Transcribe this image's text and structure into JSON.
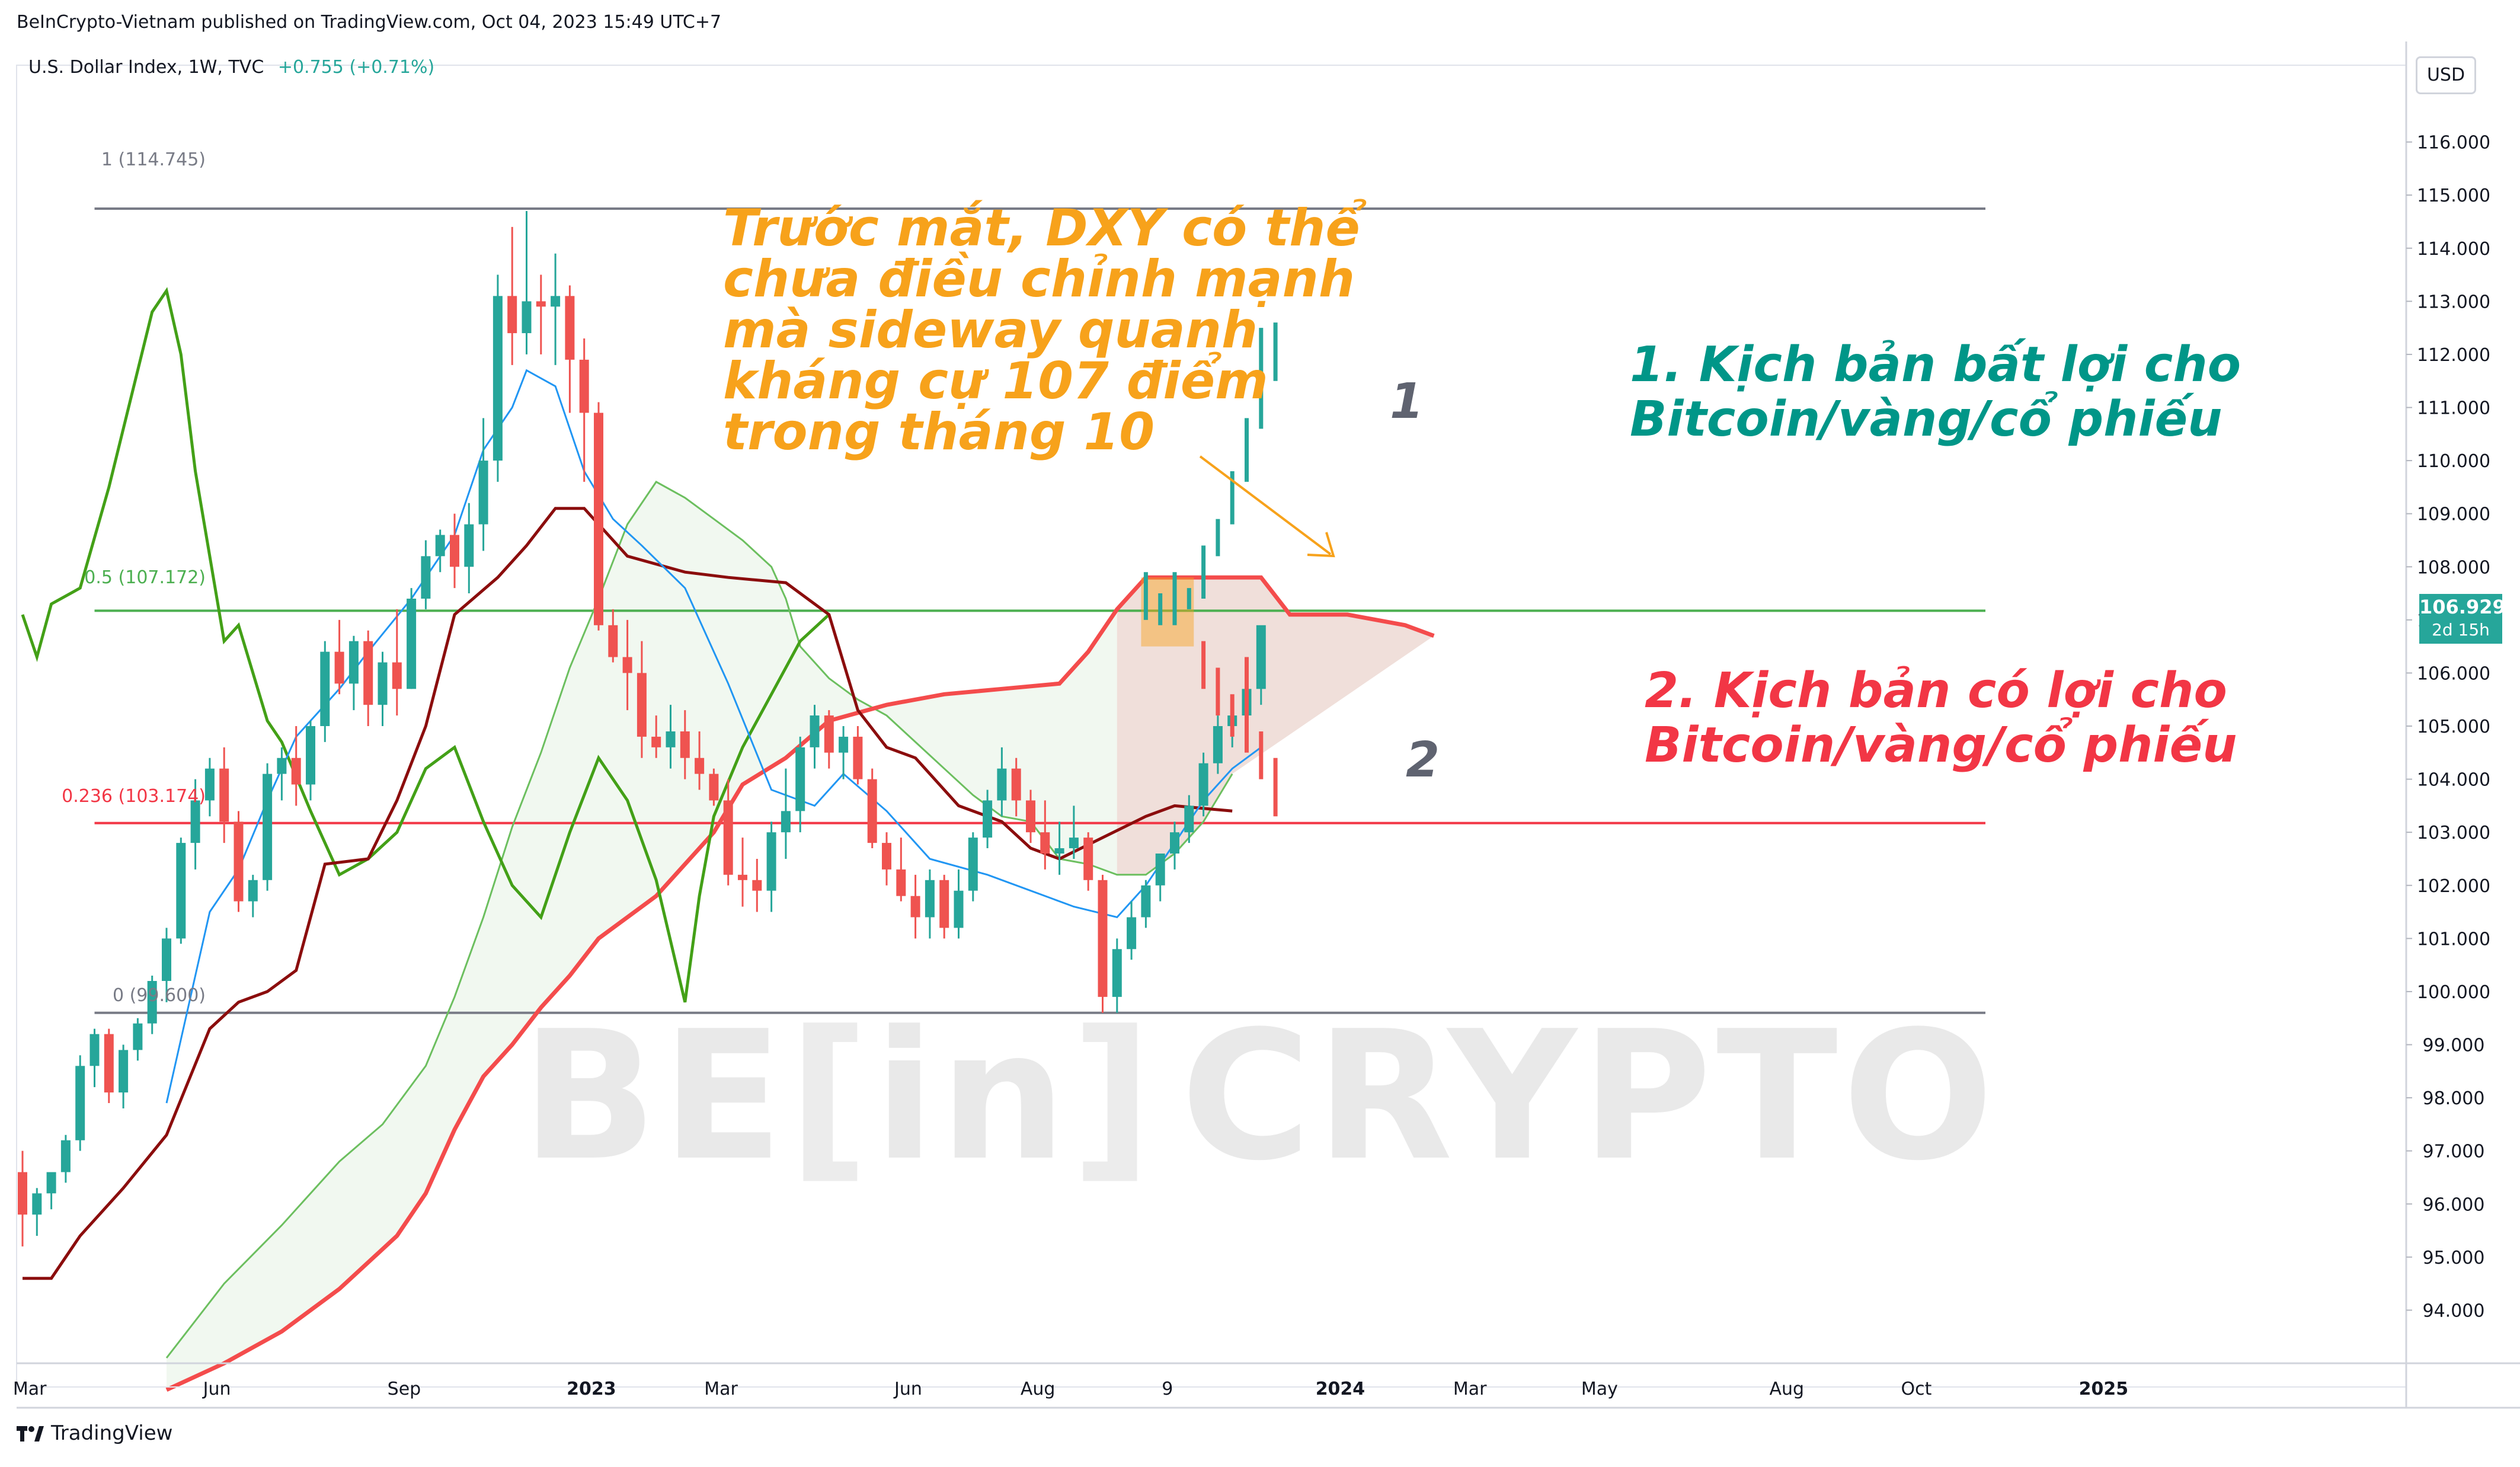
{
  "header": {
    "published": "BeInCrypto-Vietnam published on TradingView.com, Oct 04, 2023 15:49 UTC+7",
    "symbol": "U.S. Dollar Index, 1W, TVC",
    "change": "+0.755 (+0.71%)"
  },
  "currency": "USD",
  "last_price": {
    "value": "106.929",
    "countdown": "2d 15h"
  },
  "fib": {
    "level_1": "1 (114.745)",
    "level_05": "0.5 (107.172)",
    "level_0236": "0.236 (103.174)",
    "level_0": "0 (99.600)"
  },
  "annotations": {
    "orange": [
      "Trước mắt, DXY có thể",
      "chưa điều chỉnh mạnh",
      "mà sideway quanh",
      "kháng cự 107 điểm",
      "trong tháng 10"
    ],
    "teal": [
      "1. Kịch bản bất lợi cho",
      "Bitcoin/vàng/cổ phiếu"
    ],
    "red": [
      "2. Kịch bản có lợi cho",
      "Bitcoin/vàng/cổ phiếu"
    ],
    "marker_1": "1",
    "marker_2": "2"
  },
  "watermark": {
    "left": "BE",
    "mid": "in",
    "right": "CRYPTO"
  },
  "footer": {
    "brand": "TradingView"
  },
  "colors": {
    "up": "#26a69a",
    "down": "#ef5350",
    "tenkan": "#2196f3",
    "kijun": "#8b0d0d",
    "chikou": "#43a017",
    "span_a": "#f44c4c",
    "span_b": "#6cbf5f",
    "fib_top": "#787b86",
    "fib_mid": "#4caf50",
    "fib_red": "#f23645",
    "orange_text": "#f7a21b",
    "teal_text": "#009688",
    "red_text": "#f23645"
  },
  "chart_data": {
    "type": "candlestick",
    "title": "U.S. Dollar Index, 1W, TVC",
    "ylim": [
      93.0,
      117.0
    ],
    "y_ticks": [
      "116.000",
      "115.000",
      "114.000",
      "113.000",
      "112.000",
      "111.000",
      "110.000",
      "109.000",
      "108.000",
      "107.000",
      "106.000",
      "105.000",
      "104.000",
      "103.000",
      "102.000",
      "101.000",
      "100.000",
      "99.000",
      "98.000",
      "97.000",
      "96.000",
      "95.000",
      "94.000"
    ],
    "x_ticks": [
      {
        "label": "Mar",
        "x": 0.5
      },
      {
        "label": "Jun",
        "x": 13.5
      },
      {
        "label": "Sep",
        "x": 26.5
      },
      {
        "label": "2023",
        "x": 39.5
      },
      {
        "label": "Mar",
        "x": 48.5
      },
      {
        "label": "Jun",
        "x": 61.5
      },
      {
        "label": "Aug",
        "x": 70.5
      },
      {
        "label": "9",
        "x": 79.5
      },
      {
        "label": "2024",
        "x": 91.5
      },
      {
        "label": "Mar",
        "x": 100.5
      },
      {
        "label": "May",
        "x": 109.5
      },
      {
        "label": "Aug",
        "x": 122.5
      },
      {
        "label": "Oct",
        "x": 131.5
      },
      {
        "label": "2025",
        "x": 144.5
      }
    ],
    "fib_levels": [
      {
        "label": "1",
        "value": 114.745
      },
      {
        "label": "0.5",
        "value": 107.172
      },
      {
        "label": "0.236",
        "value": 103.174
      },
      {
        "label": "0",
        "value": 99.6
      }
    ],
    "candles": [
      [
        96.6,
        97.0,
        95.2,
        95.8
      ],
      [
        95.8,
        96.3,
        95.4,
        96.2
      ],
      [
        96.2,
        96.6,
        95.9,
        96.6
      ],
      [
        96.6,
        97.3,
        96.4,
        97.2
      ],
      [
        97.2,
        98.8,
        97.0,
        98.6
      ],
      [
        98.6,
        99.3,
        98.2,
        99.2
      ],
      [
        99.2,
        99.3,
        97.9,
        98.1
      ],
      [
        98.1,
        99.0,
        97.8,
        98.9
      ],
      [
        98.9,
        99.5,
        98.7,
        99.4
      ],
      [
        99.4,
        100.3,
        99.2,
        100.2
      ],
      [
        100.2,
        101.2,
        99.8,
        101.0
      ],
      [
        101.0,
        102.9,
        100.9,
        102.8
      ],
      [
        102.8,
        104.0,
        102.3,
        103.6
      ],
      [
        103.6,
        104.4,
        103.3,
        104.2
      ],
      [
        104.2,
        104.6,
        102.8,
        103.2
      ],
      [
        103.2,
        103.4,
        101.5,
        101.7
      ],
      [
        101.7,
        102.2,
        101.4,
        102.1
      ],
      [
        102.1,
        104.3,
        101.9,
        104.1
      ],
      [
        104.1,
        104.6,
        103.6,
        104.4
      ],
      [
        104.4,
        105.0,
        103.5,
        103.9
      ],
      [
        103.9,
        105.1,
        103.6,
        105.0
      ],
      [
        105.0,
        106.6,
        104.7,
        106.4
      ],
      [
        106.4,
        107.0,
        105.6,
        105.8
      ],
      [
        105.8,
        106.7,
        105.3,
        106.6
      ],
      [
        106.6,
        106.8,
        105.0,
        105.4
      ],
      [
        105.4,
        106.4,
        105.0,
        106.2
      ],
      [
        106.2,
        107.2,
        105.2,
        105.7
      ],
      [
        105.7,
        107.6,
        105.7,
        107.4
      ],
      [
        107.4,
        108.5,
        107.2,
        108.2
      ],
      [
        108.2,
        108.7,
        107.9,
        108.6
      ],
      [
        108.6,
        109.0,
        107.6,
        108.0
      ],
      [
        108.0,
        109.2,
        107.5,
        108.8
      ],
      [
        108.8,
        110.8,
        108.3,
        110.0
      ],
      [
        110.0,
        113.5,
        109.6,
        113.1
      ],
      [
        113.1,
        114.4,
        111.8,
        112.4
      ],
      [
        112.4,
        114.7,
        112.0,
        113.0
      ],
      [
        113.0,
        113.5,
        112.0,
        112.9
      ],
      [
        112.9,
        113.9,
        111.8,
        113.1
      ],
      [
        113.1,
        113.3,
        110.9,
        111.9
      ],
      [
        111.9,
        112.3,
        109.6,
        110.9
      ],
      [
        110.9,
        111.1,
        106.8,
        106.9
      ],
      [
        106.9,
        107.2,
        106.2,
        106.3
      ],
      [
        106.3,
        107.0,
        105.3,
        106.0
      ],
      [
        106.0,
        106.6,
        104.4,
        104.8
      ],
      [
        104.8,
        105.2,
        104.4,
        104.6
      ],
      [
        104.6,
        105.4,
        104.2,
        104.9
      ],
      [
        104.9,
        105.3,
        104.0,
        104.4
      ],
      [
        104.4,
        104.9,
        103.8,
        104.1
      ],
      [
        104.1,
        104.2,
        103.5,
        103.6
      ],
      [
        103.6,
        104.0,
        102.0,
        102.2
      ],
      [
        102.2,
        102.9,
        101.6,
        102.1
      ],
      [
        102.1,
        102.5,
        101.5,
        101.9
      ],
      [
        101.9,
        103.2,
        101.5,
        103.0
      ],
      [
        103.0,
        104.2,
        102.5,
        103.4
      ],
      [
        103.4,
        104.8,
        103.0,
        104.6
      ],
      [
        104.6,
        105.4,
        104.2,
        105.2
      ],
      [
        105.2,
        105.3,
        104.2,
        104.5
      ],
      [
        104.5,
        105.0,
        104.0,
        104.8
      ],
      [
        104.8,
        105.0,
        103.9,
        104.0
      ],
      [
        104.0,
        104.2,
        102.7,
        102.8
      ],
      [
        102.8,
        103.0,
        102.0,
        102.3
      ],
      [
        102.3,
        102.9,
        101.7,
        101.8
      ],
      [
        101.8,
        102.2,
        101.0,
        101.4
      ],
      [
        101.4,
        102.3,
        101.0,
        102.1
      ],
      [
        102.1,
        102.2,
        101.0,
        101.2
      ],
      [
        101.2,
        102.3,
        101.0,
        101.9
      ],
      [
        101.9,
        103.0,
        101.7,
        102.9
      ],
      [
        102.9,
        103.8,
        102.7,
        103.6
      ],
      [
        103.6,
        104.6,
        103.3,
        104.2
      ],
      [
        104.2,
        104.4,
        103.3,
        103.6
      ],
      [
        103.6,
        103.8,
        102.8,
        103.0
      ],
      [
        103.0,
        103.6,
        102.3,
        102.6
      ],
      [
        102.6,
        103.2,
        102.2,
        102.7
      ],
      [
        102.7,
        103.5,
        102.5,
        102.9
      ],
      [
        102.9,
        103.0,
        101.9,
        102.1
      ],
      [
        102.1,
        102.2,
        99.6,
        99.9
      ],
      [
        99.9,
        101.0,
        99.6,
        100.8
      ],
      [
        100.8,
        101.7,
        100.6,
        101.4
      ],
      [
        101.4,
        102.1,
        101.2,
        102.0
      ],
      [
        102.0,
        102.5,
        101.7,
        102.6
      ],
      [
        102.6,
        103.2,
        102.3,
        103.0
      ],
      [
        103.0,
        103.7,
        102.8,
        103.5
      ],
      [
        103.5,
        104.5,
        103.3,
        104.3
      ],
      [
        104.3,
        105.2,
        104.1,
        105.0
      ],
      [
        105.0,
        105.5,
        104.6,
        105.2
      ],
      [
        105.2,
        106.0,
        105.0,
        105.7
      ],
      [
        105.7,
        106.8,
        105.4,
        106.9
      ]
    ],
    "scenario_1_bars": [
      [
        107.0,
        107.9
      ],
      [
        106.9,
        107.5
      ],
      [
        106.9,
        107.9
      ],
      [
        107.2,
        107.6
      ],
      [
        107.4,
        108.4
      ],
      [
        108.2,
        108.9
      ],
      [
        108.8,
        109.8
      ],
      [
        109.6,
        110.8
      ],
      [
        110.6,
        112.5
      ],
      [
        111.5,
        112.6
      ]
    ],
    "scenario_2_bars": [
      [
        105.7,
        106.6
      ],
      [
        105.2,
        106.1
      ],
      [
        104.8,
        105.6
      ],
      [
        104.5,
        106.3
      ],
      [
        104.0,
        104.9
      ],
      [
        103.3,
        104.4
      ]
    ],
    "tenkan": [
      [
        10,
        97.9
      ],
      [
        13,
        101.5
      ],
      [
        15,
        102.3
      ],
      [
        17,
        103.6
      ],
      [
        19,
        104.8
      ],
      [
        22,
        105.7
      ],
      [
        24,
        106.4
      ],
      [
        27,
        107.4
      ],
      [
        30,
        108.6
      ],
      [
        32,
        110.2
      ],
      [
        34,
        111.0
      ],
      [
        35,
        111.7
      ],
      [
        37,
        111.4
      ],
      [
        39,
        109.8
      ],
      [
        41,
        108.9
      ],
      [
        43,
        108.4
      ],
      [
        46,
        107.6
      ],
      [
        49,
        105.8
      ],
      [
        52,
        103.8
      ],
      [
        55,
        103.5
      ],
      [
        57,
        104.1
      ],
      [
        60,
        103.4
      ],
      [
        63,
        102.5
      ],
      [
        67,
        102.2
      ],
      [
        70,
        101.9
      ],
      [
        73,
        101.6
      ],
      [
        76,
        101.4
      ],
      [
        78,
        102.0
      ],
      [
        80,
        102.8
      ],
      [
        82,
        103.6
      ],
      [
        84,
        104.2
      ],
      [
        86,
        104.6
      ]
    ],
    "kijun": [
      [
        0,
        94.6
      ],
      [
        2,
        94.6
      ],
      [
        4,
        95.4
      ],
      [
        7,
        96.3
      ],
      [
        10,
        97.3
      ],
      [
        13,
        99.3
      ],
      [
        15,
        99.8
      ],
      [
        17,
        100.0
      ],
      [
        19,
        100.4
      ],
      [
        21,
        102.4
      ],
      [
        24,
        102.5
      ],
      [
        26,
        103.6
      ],
      [
        28,
        105.0
      ],
      [
        30,
        107.1
      ],
      [
        33,
        107.8
      ],
      [
        35,
        108.4
      ],
      [
        37,
        109.1
      ],
      [
        39,
        109.1
      ],
      [
        42,
        108.2
      ],
      [
        46,
        107.9
      ],
      [
        49,
        107.8
      ],
      [
        53,
        107.7
      ],
      [
        56,
        107.1
      ],
      [
        58,
        105.3
      ],
      [
        60,
        104.6
      ],
      [
        62,
        104.4
      ],
      [
        65,
        103.5
      ],
      [
        68,
        103.2
      ],
      [
        70,
        102.7
      ],
      [
        72,
        102.5
      ],
      [
        75,
        102.9
      ],
      [
        78,
        103.3
      ],
      [
        80,
        103.5
      ],
      [
        84,
        103.4
      ]
    ],
    "chikou": [
      [
        0,
        107.1
      ],
      [
        1,
        106.3
      ],
      [
        2,
        107.3
      ],
      [
        4,
        107.6
      ],
      [
        6,
        109.5
      ],
      [
        7,
        110.6
      ],
      [
        9,
        112.8
      ],
      [
        10,
        113.2
      ],
      [
        11,
        112.0
      ],
      [
        12,
        109.8
      ],
      [
        14,
        106.6
      ],
      [
        15,
        106.9
      ],
      [
        17,
        105.1
      ],
      [
        18,
        104.7
      ],
      [
        20,
        103.4
      ],
      [
        22,
        102.2
      ],
      [
        24,
        102.5
      ],
      [
        26,
        103.0
      ],
      [
        28,
        104.2
      ],
      [
        30,
        104.6
      ],
      [
        32,
        103.2
      ],
      [
        34,
        102.0
      ],
      [
        36,
        101.4
      ],
      [
        38,
        103.0
      ],
      [
        40,
        104.4
      ],
      [
        42,
        103.6
      ],
      [
        44,
        102.1
      ],
      [
        46,
        99.8
      ],
      [
        47,
        101.8
      ],
      [
        48,
        103.3
      ],
      [
        50,
        104.6
      ],
      [
        52,
        105.6
      ],
      [
        54,
        106.6
      ],
      [
        56,
        107.1
      ]
    ],
    "span_a": [
      [
        10,
        92.5
      ],
      [
        14,
        93.0
      ],
      [
        18,
        93.6
      ],
      [
        22,
        94.4
      ],
      [
        26,
        95.4
      ],
      [
        28,
        96.2
      ],
      [
        30,
        97.4
      ],
      [
        32,
        98.4
      ],
      [
        34,
        99.0
      ],
      [
        36,
        99.7
      ],
      [
        38,
        100.3
      ],
      [
        40,
        101.0
      ],
      [
        44,
        101.8
      ],
      [
        48,
        103.0
      ],
      [
        50,
        103.9
      ],
      [
        53,
        104.4
      ],
      [
        56,
        105.1
      ],
      [
        60,
        105.4
      ],
      [
        64,
        105.6
      ],
      [
        68,
        105.7
      ],
      [
        72,
        105.8
      ],
      [
        74,
        106.4
      ],
      [
        76,
        107.2
      ],
      [
        78,
        107.8
      ],
      [
        82,
        107.8
      ],
      [
        86,
        107.8
      ],
      [
        88,
        107.1
      ],
      [
        92,
        107.1
      ],
      [
        96,
        106.9
      ],
      [
        98,
        106.7
      ]
    ],
    "span_b": [
      [
        10,
        93.1
      ],
      [
        14,
        94.5
      ],
      [
        18,
        95.6
      ],
      [
        22,
        96.8
      ],
      [
        25,
        97.5
      ],
      [
        28,
        98.6
      ],
      [
        30,
        99.9
      ],
      [
        32,
        101.4
      ],
      [
        34,
        103.1
      ],
      [
        36,
        104.5
      ],
      [
        38,
        106.1
      ],
      [
        40,
        107.4
      ],
      [
        42,
        108.8
      ],
      [
        44,
        109.6
      ],
      [
        46,
        109.3
      ],
      [
        48,
        108.9
      ],
      [
        50,
        108.5
      ],
      [
        52,
        108.0
      ],
      [
        53,
        107.4
      ],
      [
        54,
        106.5
      ],
      [
        56,
        105.9
      ],
      [
        58,
        105.5
      ],
      [
        60,
        105.2
      ],
      [
        62,
        104.7
      ],
      [
        64,
        104.2
      ],
      [
        66,
        103.7
      ],
      [
        68,
        103.3
      ],
      [
        70,
        103.2
      ],
      [
        72,
        102.5
      ],
      [
        74,
        102.4
      ],
      [
        76,
        102.2
      ],
      [
        78,
        102.2
      ],
      [
        80,
        102.6
      ],
      [
        82,
        103.2
      ],
      [
        84,
        104.1
      ]
    ]
  }
}
